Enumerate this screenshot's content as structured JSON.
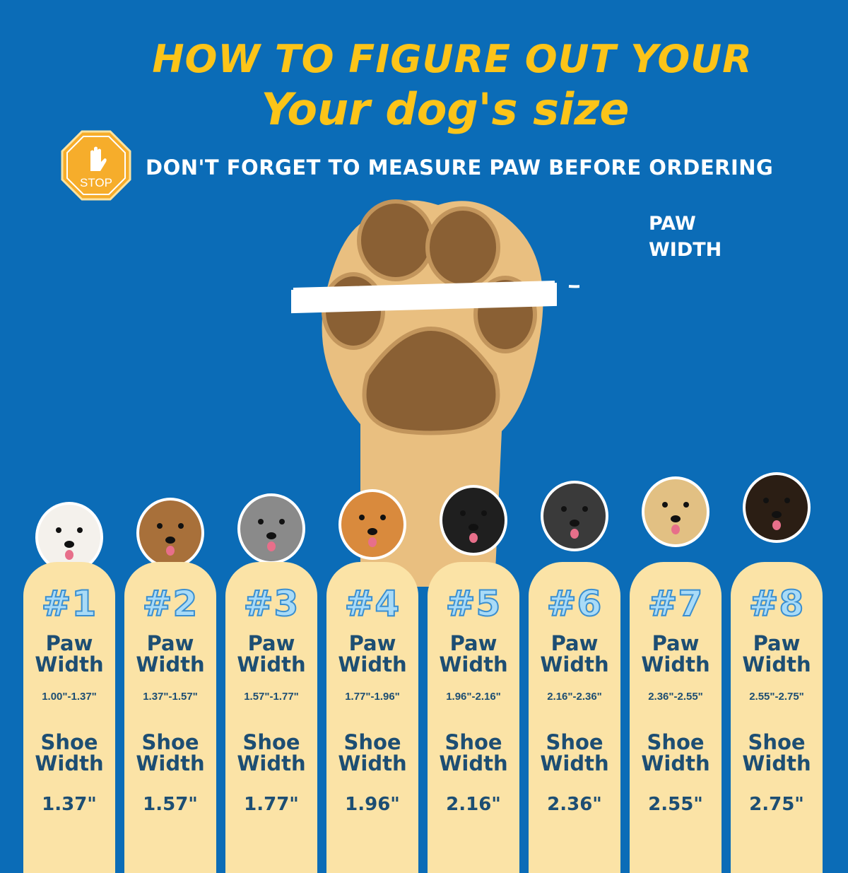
{
  "header": {
    "title_line1": "HOW TO FIGURE OUT YOUR",
    "title_line2": "Your dog's size",
    "stop_sign_text": "STOP",
    "reminder": "DON'T FORGET TO MEASURE PAW BEFORE ORDERING"
  },
  "diagram": {
    "paw_width_label_1": "PAW",
    "paw_width_label_2": "WIDTH"
  },
  "colors": {
    "background": "#0b6cb7",
    "title": "#fcc419",
    "card": "#fbe3a6",
    "text": "#1d4e73"
  },
  "sizes": [
    {
      "number": "#1",
      "paw_label_1": "Paw",
      "paw_label_2": "Width",
      "paw_range": "1.00\"-1.37\"",
      "shoe_label_1": "Shoe",
      "shoe_label_2": "Width",
      "shoe_width": "1.37\""
    },
    {
      "number": "#2",
      "paw_label_1": "Paw",
      "paw_label_2": "Width",
      "paw_range": "1.37\"-1.57\"",
      "shoe_label_1": "Shoe",
      "shoe_label_2": "Width",
      "shoe_width": "1.57\""
    },
    {
      "number": "#3",
      "paw_label_1": "Paw",
      "paw_label_2": "Width",
      "paw_range": "1.57\"-1.77\"",
      "shoe_label_1": "Shoe",
      "shoe_label_2": "Width",
      "shoe_width": "1.77\""
    },
    {
      "number": "#4",
      "paw_label_1": "Paw",
      "paw_label_2": "Width",
      "paw_range": "1.77\"-1.96\"",
      "shoe_label_1": "Shoe",
      "shoe_label_2": "Width",
      "shoe_width": "1.96\""
    },
    {
      "number": "#5",
      "paw_label_1": "Paw",
      "paw_label_2": "Width",
      "paw_range": "1.96\"-2.16\"",
      "shoe_label_1": "Shoe",
      "shoe_label_2": "Width",
      "shoe_width": "2.16\""
    },
    {
      "number": "#6",
      "paw_label_1": "Paw",
      "paw_label_2": "Width",
      "paw_range": "2.16\"-2.36\"",
      "shoe_label_1": "Shoe",
      "shoe_label_2": "Width",
      "shoe_width": "2.36\""
    },
    {
      "number": "#7",
      "paw_label_1": "Paw",
      "paw_label_2": "Width",
      "paw_range": "2.36\"-2.55\"",
      "shoe_label_1": "Shoe",
      "shoe_label_2": "Width",
      "shoe_width": "2.55\""
    },
    {
      "number": "#8",
      "paw_label_1": "Paw",
      "paw_label_2": "Width",
      "paw_range": "2.55\"-2.75\"",
      "shoe_label_1": "Shoe",
      "shoe_label_2": "Width",
      "shoe_width": "2.75\""
    }
  ]
}
